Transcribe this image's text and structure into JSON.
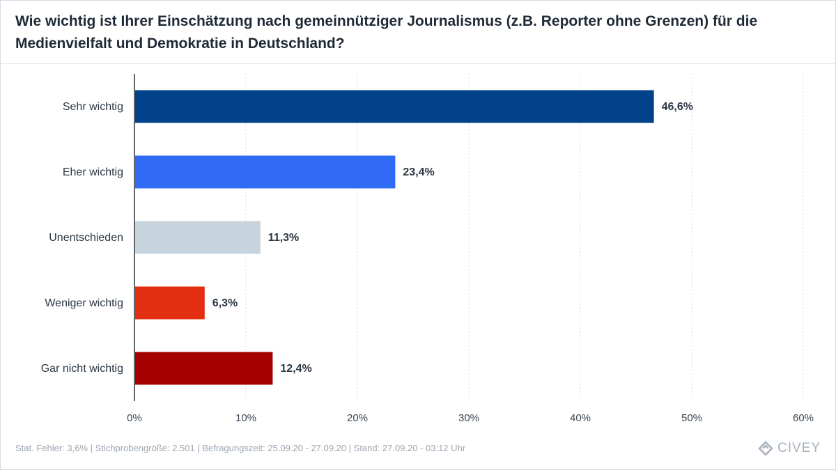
{
  "chart_data": {
    "type": "bar",
    "orientation": "horizontal",
    "title": "Wie wichtig ist Ihrer Einschätzung nach gemeinnütziger Journalismus (z.B. Reporter ohne Grenzen) für die Medienvielfalt und Demokratie in Deutschland?",
    "categories": [
      "Sehr wichtig",
      "Eher wichtig",
      "Unentschieden",
      "Weniger wichtig",
      "Gar nicht wichtig"
    ],
    "values": [
      46.6,
      23.4,
      11.3,
      6.3,
      12.4
    ],
    "value_labels": [
      "46,6%",
      "23,4%",
      "11,3%",
      "6,3%",
      "12,4%"
    ],
    "colors": [
      "#004189",
      "#316bf5",
      "#c7d3dd",
      "#e22f12",
      "#a50000"
    ],
    "xlim": [
      0,
      60
    ],
    "x_ticks": [
      0,
      10,
      20,
      30,
      40,
      50,
      60
    ],
    "x_tick_labels": [
      "0%",
      "10%",
      "20%",
      "30%",
      "40%",
      "50%",
      "60%"
    ],
    "grid": true
  },
  "footer": {
    "text": "Stat. Fehler: 3,6% | Stichprobengröße: 2.501 | Befragungszeit: 25.09.20 - 27.09.20 | Stand: 27.09.20 - 03:12 Uhr"
  },
  "brand": {
    "name": "CIVEY",
    "icon": "civey-logo-icon"
  }
}
